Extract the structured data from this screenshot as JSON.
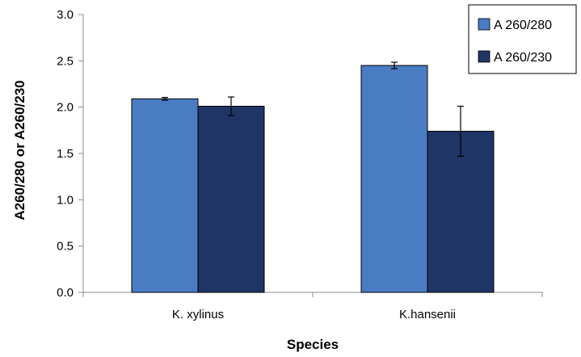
{
  "chart_data": {
    "type": "bar",
    "title": "",
    "xlabel": "Species",
    "ylabel": "A260/280 or A260/230",
    "ylim": [
      0,
      3.0
    ],
    "yticks": [
      "0.0",
      "0.5",
      "1.0",
      "1.5",
      "2.0",
      "2.5",
      "3.0"
    ],
    "categories": [
      "K. xylinus",
      "K.hansenii"
    ],
    "series": [
      {
        "name": "A 260/280",
        "color": "#4a7cc4",
        "values": [
          2.09,
          2.45
        ],
        "errors": [
          0.015,
          0.035
        ]
      },
      {
        "name": "A 260/230",
        "color": "#1f3566",
        "values": [
          2.01,
          1.74
        ],
        "errors": [
          0.1,
          0.27
        ]
      }
    ],
    "grid": false,
    "legend_position": "top-right"
  }
}
